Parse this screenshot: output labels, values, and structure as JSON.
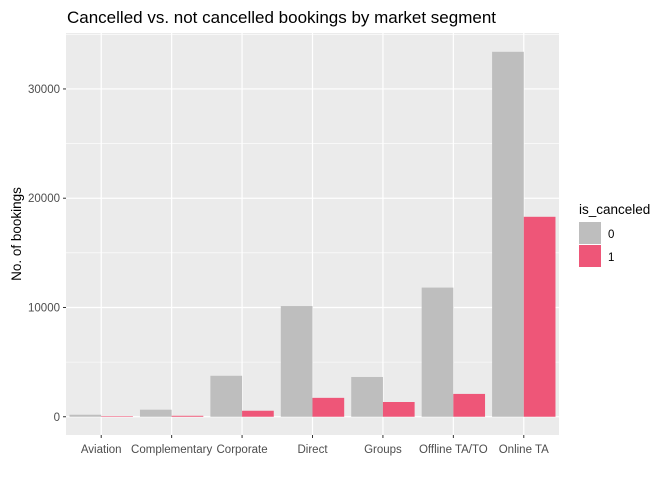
{
  "chart_data": {
    "type": "bar",
    "title": "Cancelled vs. not cancelled bookings by market segment",
    "xlabel": "",
    "ylabel": "No. of bookings",
    "categories": [
      "Aviation",
      "Complementary",
      "Corporate",
      "Direct",
      "Groups",
      "Offline TA/TO",
      "Online TA"
    ],
    "series": [
      {
        "name": "0",
        "color": "#bebebe",
        "values": [
          185,
          646,
          3750,
          10130,
          3640,
          11820,
          33400
        ]
      },
      {
        "name": "1",
        "color": "#ee5678",
        "values": [
          52,
          88,
          550,
          1730,
          1350,
          2090,
          18300
        ]
      }
    ],
    "ylim": [
      -1670,
      35120
    ],
    "yticks": [
      0,
      10000,
      20000,
      30000
    ],
    "ytick_labels": [
      "0",
      "10000",
      "20000",
      "30000"
    ],
    "grid": true,
    "panel_background": "#ebebeb",
    "grid_color": "#ffffff",
    "legend": {
      "title": "is_canceled",
      "position": "right",
      "entries": [
        "0",
        "1"
      ]
    }
  }
}
